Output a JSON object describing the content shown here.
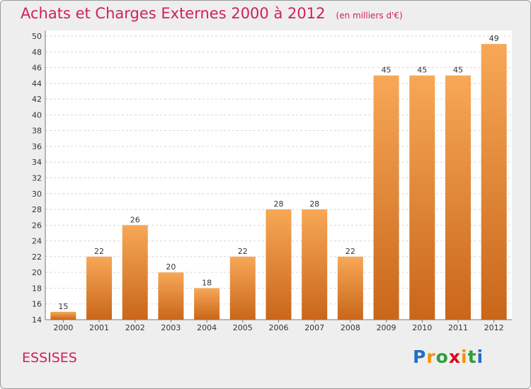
{
  "title": "Achats et Charges Externes 2000 à 2012",
  "unit": "(en milliers d'€)",
  "commune": "ESSISES",
  "brand": {
    "letters": [
      "P",
      "r",
      "o",
      "x",
      "i",
      "t",
      "i"
    ],
    "colors": [
      "#1f6fc5",
      "#f39200",
      "#2e9e3e",
      "#e2001a",
      "#f39200",
      "#2e9e3e",
      "#1f6fc5"
    ]
  },
  "colors": {
    "bar_top": "#f7a857",
    "bar_bottom": "#c9661a",
    "title": "#d01f5e",
    "background": "#eeeeee"
  },
  "chart_data": {
    "type": "bar",
    "categories": [
      "2000",
      "2001",
      "2002",
      "2003",
      "2004",
      "2005",
      "2006",
      "2007",
      "2008",
      "2009",
      "2010",
      "2011",
      "2012"
    ],
    "values": [
      15,
      22,
      26,
      20,
      18,
      22,
      28,
      28,
      22,
      45,
      45,
      45,
      49
    ],
    "data_labels": [
      "15",
      "22",
      "26",
      "20",
      "18",
      "22",
      "28",
      "28",
      "22",
      "45",
      "45",
      "45",
      "49"
    ],
    "ylim": [
      14,
      50
    ],
    "yticks": [
      14,
      16,
      18,
      20,
      22,
      24,
      26,
      28,
      30,
      32,
      34,
      36,
      38,
      40,
      42,
      44,
      46,
      48,
      50
    ],
    "grid": true,
    "xlabel": "",
    "ylabel": ""
  }
}
